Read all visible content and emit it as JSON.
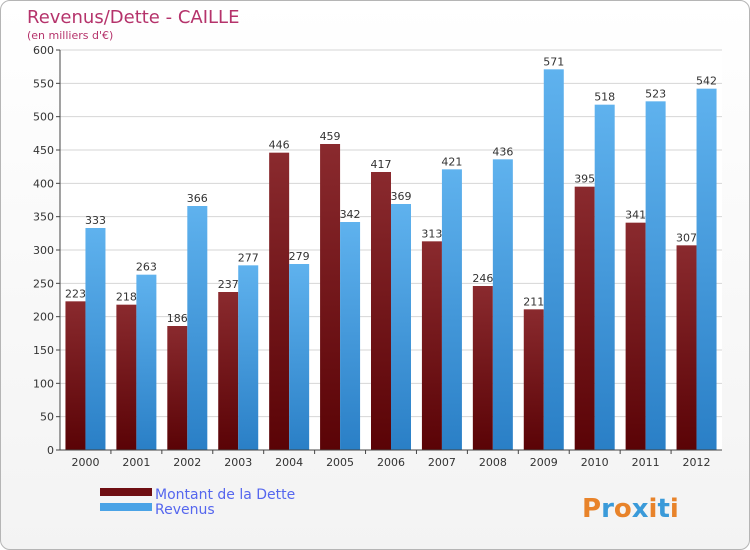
{
  "chart_data": {
    "type": "bar",
    "title": "Revenus/Dette - CAILLE",
    "subtitle": "(en milliers d'€)",
    "categories": [
      "2000",
      "2001",
      "2002",
      "2003",
      "2004",
      "2005",
      "2006",
      "2007",
      "2008",
      "2009",
      "2010",
      "2011",
      "2012"
    ],
    "series": [
      {
        "name": "Montant de la Dette",
        "color": "#6e0e12",
        "values": [
          223,
          218,
          186,
          237,
          446,
          459,
          417,
          313,
          246,
          211,
          395,
          341,
          307
        ]
      },
      {
        "name": "Revenus",
        "color": "#4aa3e6",
        "values": [
          333,
          263,
          366,
          277,
          279,
          342,
          369,
          421,
          436,
          571,
          518,
          523,
          542
        ]
      }
    ],
    "ylim": [
      0,
      600
    ],
    "yticks": [
      0,
      50,
      100,
      150,
      200,
      250,
      300,
      350,
      400,
      450,
      500,
      550,
      600
    ],
    "grid": true,
    "legend_position": "bottom-left"
  },
  "logo": {
    "text": "Proxiti",
    "letters": [
      "P",
      "r",
      "o",
      "x",
      "i",
      "t",
      "i"
    ],
    "colors": [
      "#e8832a",
      "#3a9ad9",
      "#e8832a",
      "#3a9ad9",
      "#e8832a",
      "#3a9ad9",
      "#e8832a"
    ]
  }
}
